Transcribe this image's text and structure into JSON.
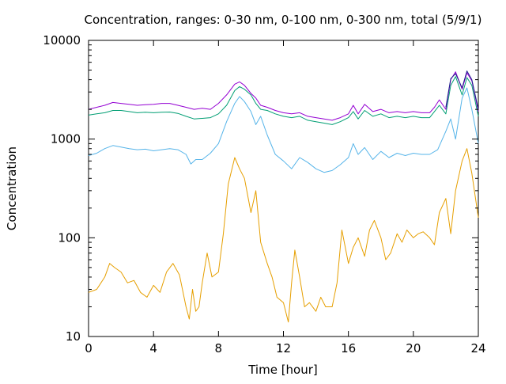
{
  "chart_data": {
    "type": "line",
    "title": "Concentration, ranges: 0-30 nm, 0-100 nm, 0-300 nm, total (5/9/1)",
    "xlabel": "Time [hour]",
    "ylabel": "Concentration",
    "xlim": [
      0,
      24
    ],
    "ylim": [
      10,
      10000
    ],
    "yscale": "log",
    "grid": false,
    "legend": "none",
    "x_ticks": [
      {
        "value": 0,
        "label": "0"
      },
      {
        "value": 4,
        "label": "4"
      },
      {
        "value": 8,
        "label": "8"
      },
      {
        "value": 12,
        "label": "12"
      },
      {
        "value": 16,
        "label": "16"
      },
      {
        "value": 20,
        "label": "20"
      },
      {
        "value": 24,
        "label": "24"
      }
    ],
    "y_ticks": [
      {
        "value": 10,
        "label": "10"
      },
      {
        "value": 100,
        "label": "100"
      },
      {
        "value": 1000,
        "label": "1000"
      },
      {
        "value": 10000,
        "label": "10000"
      }
    ],
    "series": [
      {
        "color": "#e69f00",
        "x": [
          0,
          0.5,
          1,
          1.3,
          1.6,
          2,
          2.4,
          2.8,
          3.2,
          3.6,
          4,
          4.4,
          4.8,
          5.2,
          5.6,
          6,
          6.2,
          6.4,
          6.6,
          6.8,
          7,
          7.3,
          7.6,
          8,
          8.3,
          8.6,
          9,
          9.3,
          9.6,
          10,
          10.3,
          10.6,
          11,
          11.3,
          11.6,
          12,
          12.3,
          12.5,
          12.7,
          13,
          13.3,
          13.6,
          14,
          14.3,
          14.6,
          15,
          15.3,
          15.6,
          16,
          16.3,
          16.6,
          17,
          17.3,
          17.6,
          18,
          18.3,
          18.6,
          19,
          19.3,
          19.6,
          20,
          20.3,
          20.6,
          21,
          21.3,
          21.6,
          22,
          22.3,
          22.6,
          23,
          23.3,
          23.6,
          24
        ],
        "values": [
          28,
          30,
          40,
          55,
          50,
          45,
          35,
          37,
          28,
          25,
          33,
          28,
          45,
          55,
          42,
          20,
          15,
          30,
          18,
          20,
          35,
          70,
          40,
          45,
          110,
          350,
          650,
          500,
          400,
          180,
          300,
          90,
          55,
          40,
          25,
          22,
          14,
          35,
          75,
          40,
          20,
          22,
          18,
          25,
          20,
          20,
          35,
          120,
          55,
          80,
          100,
          65,
          120,
          150,
          100,
          60,
          70,
          110,
          90,
          120,
          100,
          110,
          115,
          100,
          85,
          180,
          250,
          110,
          300,
          600,
          800,
          450,
          160
        ]
      },
      {
        "color": "#56b4e9",
        "x": [
          0,
          0.5,
          1,
          1.5,
          2,
          2.5,
          3,
          3.5,
          4,
          4.5,
          5,
          5.5,
          6,
          6.3,
          6.6,
          7,
          7.5,
          8,
          8.5,
          9,
          9.3,
          9.6,
          10,
          10.3,
          10.6,
          11,
          11.5,
          12,
          12.5,
          13,
          13.5,
          14,
          14.5,
          15,
          15.5,
          16,
          16.3,
          16.6,
          17,
          17.5,
          18,
          18.5,
          19,
          19.5,
          20,
          20.5,
          21,
          21.5,
          22,
          22.3,
          22.6,
          23,
          23.3,
          23.6,
          24
        ],
        "values": [
          680,
          720,
          800,
          860,
          830,
          800,
          780,
          790,
          760,
          780,
          800,
          780,
          700,
          560,
          620,
          620,
          720,
          900,
          1500,
          2300,
          2700,
          2400,
          1900,
          1400,
          1700,
          1100,
          700,
          600,
          500,
          650,
          580,
          500,
          460,
          480,
          550,
          650,
          900,
          700,
          820,
          620,
          750,
          650,
          720,
          680,
          720,
          700,
          700,
          780,
          1200,
          1600,
          1000,
          2600,
          3300,
          2000,
          900
        ]
      },
      {
        "color": "#009e73",
        "x": [
          0,
          0.5,
          1,
          1.5,
          2,
          2.5,
          3,
          3.5,
          4,
          4.5,
          5,
          5.5,
          6,
          6.5,
          7,
          7.5,
          8,
          8.5,
          9,
          9.3,
          9.6,
          10,
          10.3,
          10.6,
          11,
          11.5,
          12,
          12.5,
          13,
          13.5,
          14,
          14.5,
          15,
          15.5,
          16,
          16.3,
          16.6,
          17,
          17.5,
          18,
          18.5,
          19,
          19.5,
          20,
          20.5,
          21,
          21.3,
          21.6,
          22,
          22.3,
          22.6,
          23,
          23.3,
          23.6,
          24
        ],
        "values": [
          1750,
          1800,
          1850,
          1950,
          1950,
          1900,
          1850,
          1870,
          1850,
          1870,
          1880,
          1820,
          1700,
          1600,
          1620,
          1650,
          1800,
          2200,
          3100,
          3400,
          3200,
          2800,
          2300,
          2000,
          1950,
          1800,
          1700,
          1650,
          1700,
          1550,
          1500,
          1450,
          1400,
          1500,
          1650,
          1900,
          1600,
          1950,
          1700,
          1800,
          1650,
          1700,
          1650,
          1700,
          1650,
          1650,
          1900,
          2200,
          1800,
          3500,
          4300,
          2800,
          4200,
          3500,
          1700
        ]
      },
      {
        "color": "#9400d3",
        "x": [
          0,
          0.5,
          1,
          1.5,
          2,
          2.5,
          3,
          3.5,
          4,
          4.5,
          5,
          5.5,
          6,
          6.5,
          7,
          7.5,
          8,
          8.5,
          9,
          9.3,
          9.6,
          10,
          10.3,
          10.6,
          11,
          11.5,
          12,
          12.5,
          13,
          13.5,
          14,
          14.5,
          15,
          15.5,
          16,
          16.3,
          16.6,
          17,
          17.5,
          18,
          18.5,
          19,
          19.5,
          20,
          20.5,
          21,
          21.3,
          21.6,
          22,
          22.3,
          22.6,
          23,
          23.3,
          23.6,
          24
        ],
        "values": [
          2000,
          2100,
          2200,
          2350,
          2300,
          2250,
          2200,
          2230,
          2250,
          2300,
          2300,
          2200,
          2100,
          2000,
          2050,
          2000,
          2300,
          2800,
          3600,
          3800,
          3500,
          2900,
          2600,
          2200,
          2100,
          1950,
          1850,
          1800,
          1850,
          1700,
          1650,
          1600,
          1550,
          1650,
          1800,
          2200,
          1800,
          2250,
          1900,
          2000,
          1850,
          1900,
          1850,
          1900,
          1850,
          1850,
          2100,
          2500,
          2000,
          4000,
          4800,
          3200,
          4700,
          3900,
          1900
        ]
      },
      {
        "color": "#1e1e8c",
        "x": [
          22,
          22.3,
          22.6,
          23,
          23.3,
          23.6,
          24
        ],
        "values": [
          2100,
          4100,
          4600,
          3300,
          4900,
          4000,
          2000
        ]
      }
    ]
  }
}
